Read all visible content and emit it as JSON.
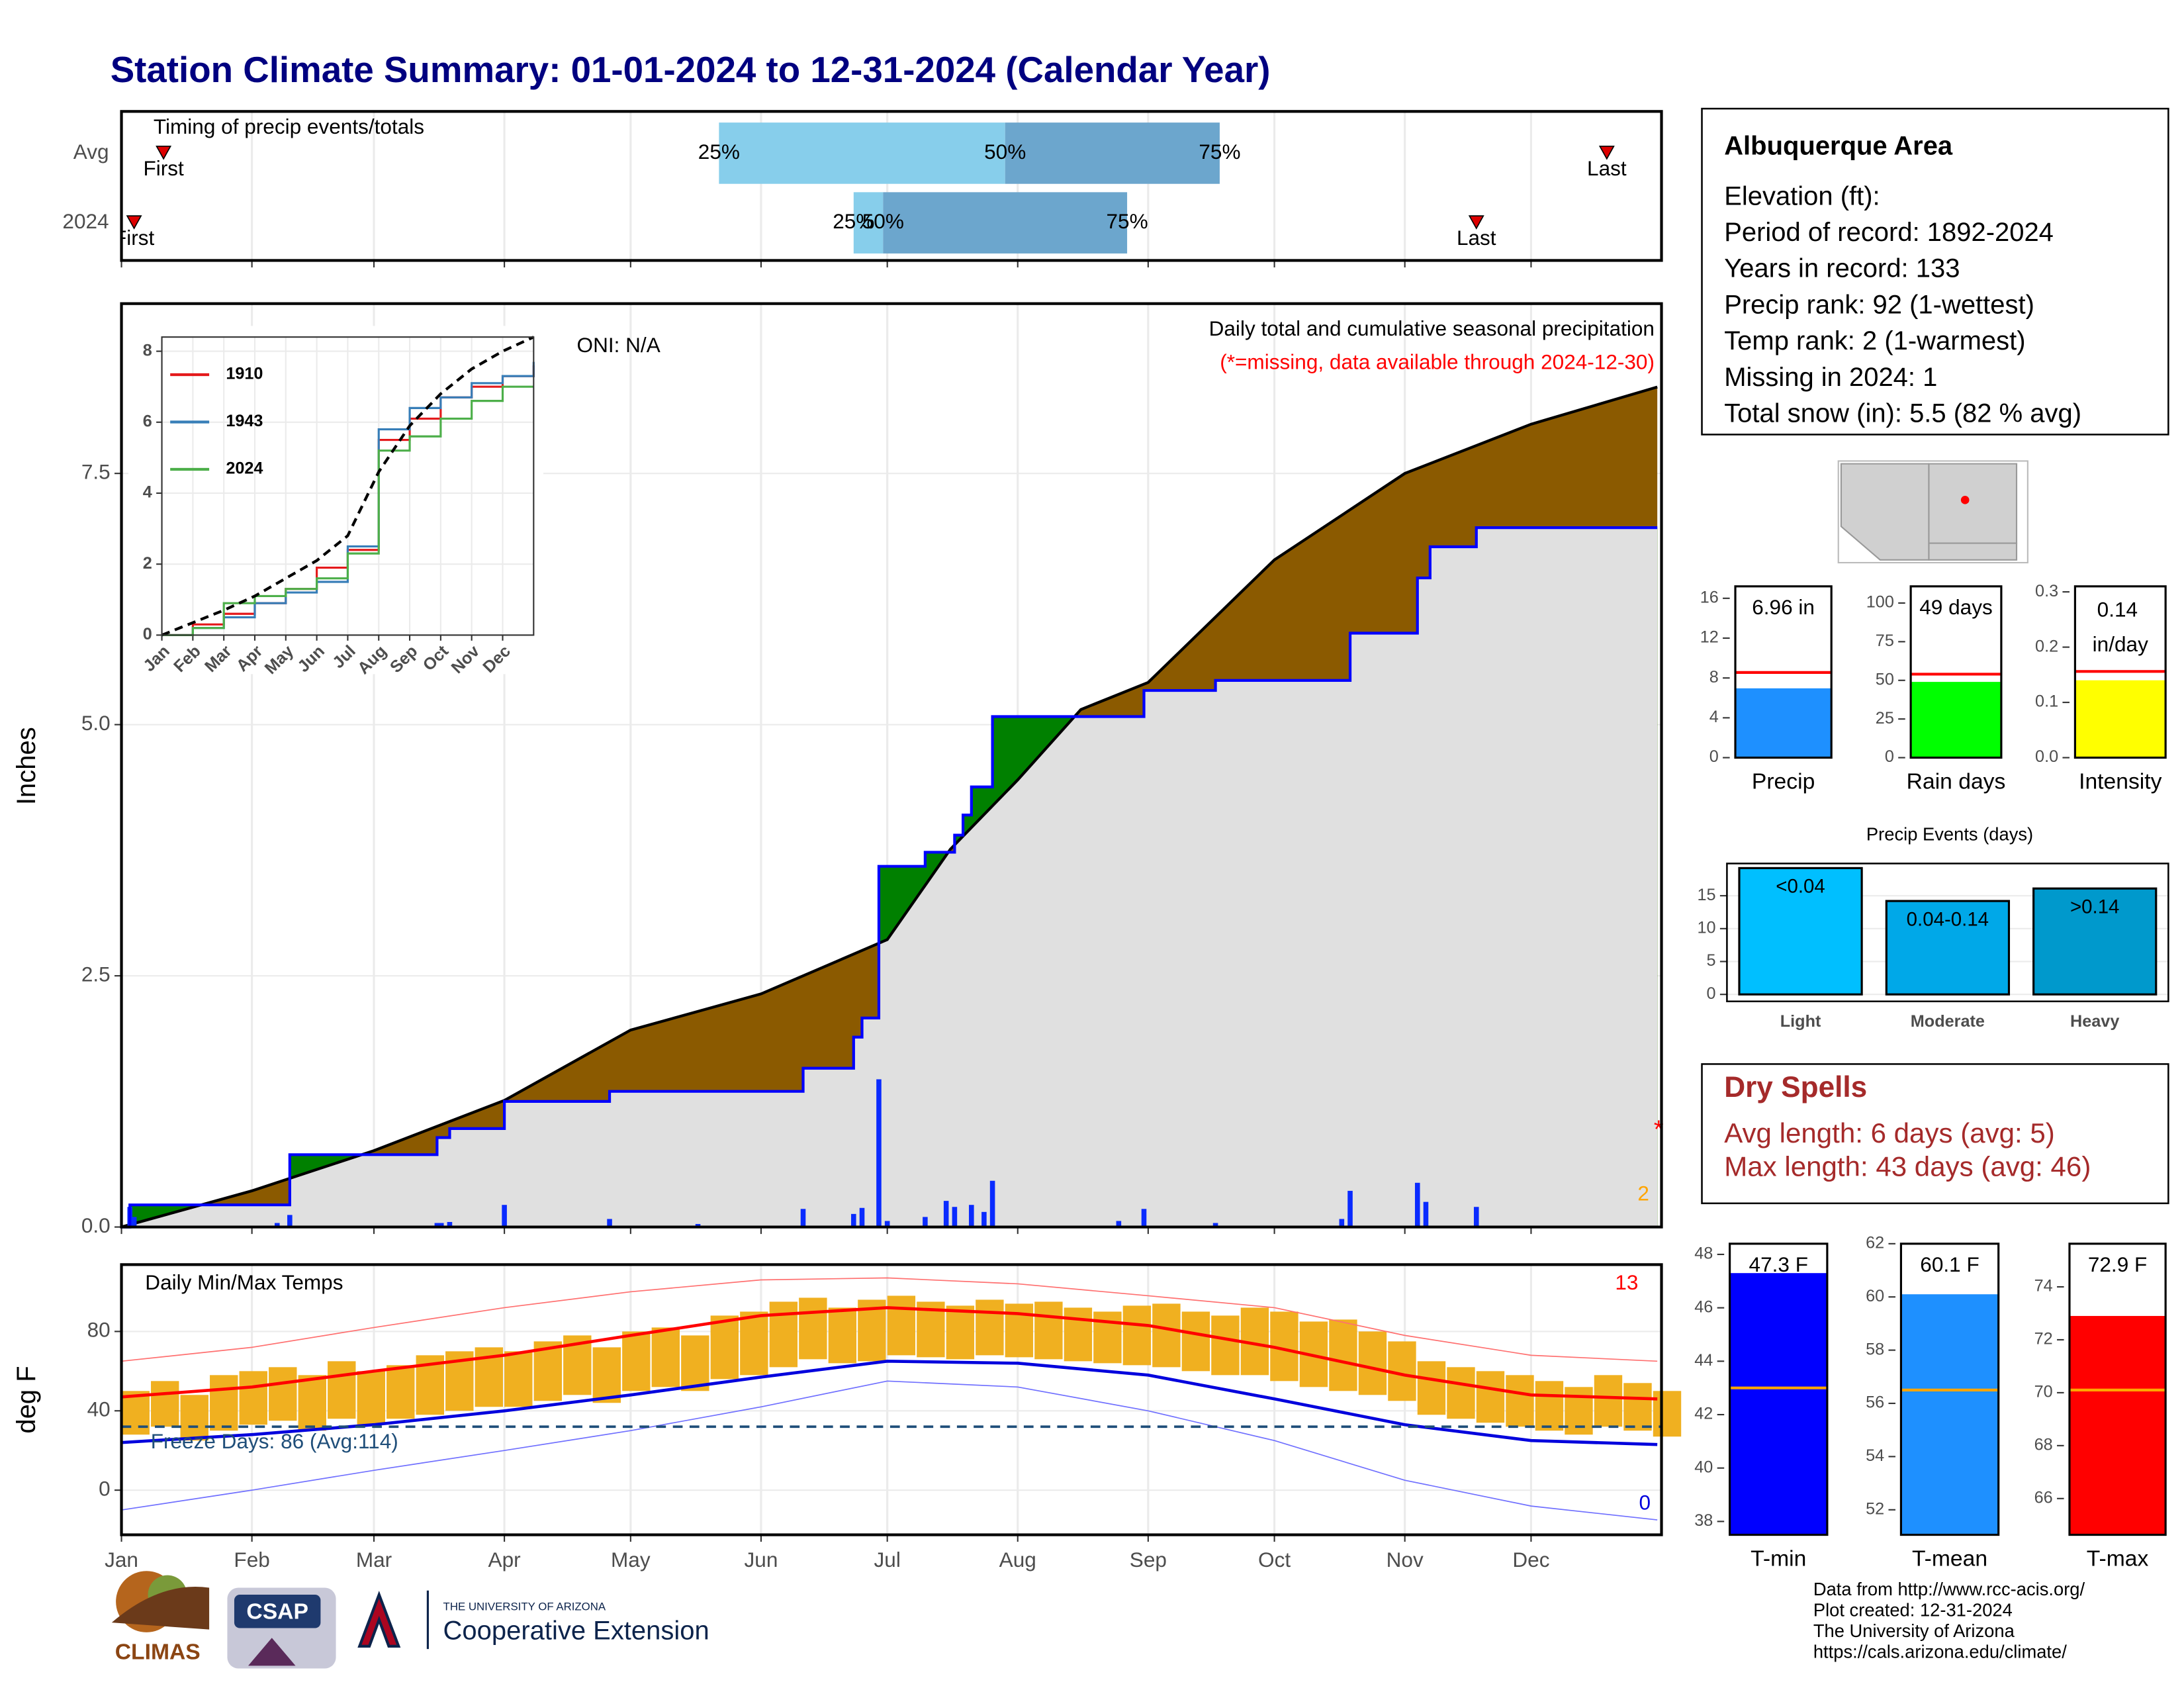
{
  "page_title": "Station Climate Summary: 01-01-2024 to 12-31-2024 (Calendar Year)",
  "info": {
    "title": "Albuquerque Area",
    "lines": [
      "Elevation (ft):",
      "Period of record: 1892-2024",
      "Years in record: 133",
      "Precip rank: 92 (1-wettest)",
      "Temp rank: 2 (1-warmest)",
      "Missing in 2024: 1",
      "Total snow (in): 5.5 (82 % avg)"
    ]
  },
  "dry_spells": {
    "title": "Dry Spells",
    "lines": [
      "Avg length: 6 days (avg: 5)",
      "Max length: 43 days (avg: 46)"
    ]
  },
  "footer": [
    "Data from http://www.rcc-acis.org/",
    "Plot created: 12-31-2024",
    "The University of Arizona",
    "https://cals.arizona.edu/climate/"
  ],
  "logos": {
    "climas": "CLIMAS",
    "csap": "CSAP",
    "ua": "THE UNIVERSITY OF ARIZONA",
    "extension": "Cooperative Extension"
  },
  "chart_data": [
    {
      "type": "timing",
      "title": "Timing of precip events/totals",
      "categories": [
        "Avg",
        "2024"
      ],
      "first": [
        10,
        3
      ],
      "last": [
        353,
        322
      ],
      "q25": [
        142,
        174
      ],
      "q50": [
        210,
        181
      ],
      "q75": [
        261,
        239
      ],
      "first_label": "First",
      "last_label": "Last",
      "q25_label": "25%",
      "q50_label": "50%",
      "q75_label": "75%",
      "colors": [
        "#87ceeb",
        "#6ca6cd"
      ]
    },
    {
      "type": "precip",
      "title": "Daily total and cumulative seasonal precipitation",
      "subtitle": "(*=missing, data available through 2024-12-30)",
      "annotation": "ONI: N/A",
      "ylabel": "Inches",
      "missing_marker": "*",
      "orange_count": 2,
      "ylim": [
        0,
        9.19
      ],
      "yticks": [
        {
          "value": 0,
          "label": "0.0"
        },
        2.5,
        {
          "value": 5,
          "label": "5.0"
        },
        7.5
      ],
      "avg": {
        "x": [
          0,
          31,
          60,
          91,
          121,
          152,
          182,
          197,
          213,
          228,
          244,
          274,
          305,
          335,
          365
        ],
        "values": [
          0,
          0.36,
          0.76,
          1.26,
          1.96,
          2.32,
          2.86,
          3.76,
          4.45,
          5.15,
          5.42,
          6.64,
          7.5,
          7.99,
          8.36
        ],
        "color": "#8b5a00"
      },
      "current": {
        "x": [
          0,
          2,
          40,
          75,
          78,
          91,
          116,
          162,
          174,
          176,
          180,
          191,
          198,
          200,
          202,
          207,
          243,
          260,
          292,
          308,
          311,
          322,
          365
        ],
        "values": [
          0,
          0.22,
          0.72,
          0.89,
          0.98,
          1.25,
          1.35,
          1.58,
          1.89,
          2.08,
          3.59,
          3.73,
          3.9,
          4.1,
          4.38,
          5.08,
          5.34,
          5.44,
          5.91,
          6.46,
          6.77,
          6.96,
          6.96
        ],
        "color": "#0000ff"
      },
      "daily": {
        "x": [
          2,
          3,
          37,
          40,
          75,
          76,
          78,
          91,
          116,
          137,
          162,
          174,
          176,
          180,
          182,
          191,
          196,
          198,
          202,
          205,
          207,
          237,
          243,
          260,
          290,
          292,
          308,
          310,
          322
        ],
        "values": [
          0.2,
          0.1,
          0.04,
          0.12,
          0.04,
          0.04,
          0.05,
          0.22,
          0.08,
          0.03,
          0.18,
          0.13,
          0.19,
          1.47,
          0.06,
          0.1,
          0.26,
          0.2,
          0.22,
          0.15,
          0.46,
          0.06,
          0.18,
          0.04,
          0.08,
          0.36,
          0.44,
          0.25,
          0.2
        ],
        "color": "#0a2bff"
      },
      "above_color": "#008000",
      "overlap_color": "#e0e0e0"
    },
    {
      "type": "line",
      "xlim": [
        0,
        12
      ],
      "xticks": [
        {
          "value": 0,
          "label": "Jan"
        },
        {
          "value": 1,
          "label": "Feb"
        },
        {
          "value": 2,
          "label": "Mar"
        },
        {
          "value": 3,
          "label": "Apr"
        },
        {
          "value": 4,
          "label": "May"
        },
        {
          "value": 5,
          "label": "Jun"
        },
        {
          "value": 6,
          "label": "Jul"
        },
        {
          "value": 7,
          "label": "Aug"
        },
        {
          "value": 8,
          "label": "Sep"
        },
        {
          "value": 9,
          "label": "Oct"
        },
        {
          "value": 10,
          "label": "Nov"
        },
        {
          "value": 11,
          "label": "Dec"
        }
      ],
      "ylim": [
        0,
        8.4
      ],
      "yticks": [
        0,
        2,
        4,
        6,
        8
      ],
      "x": [
        0,
        1,
        2,
        3,
        4,
        5,
        6,
        7,
        8,
        9,
        10,
        11,
        12
      ],
      "series": [
        {
          "name": "1910",
          "color": "#e41a1c",
          "step": true,
          "values": [
            0,
            0.3,
            0.6,
            0.9,
            1.3,
            1.9,
            2.4,
            5.5,
            6.1,
            6.7,
            7.0,
            7.3,
            7.6
          ]
        },
        {
          "name": "1943",
          "color": "#377eb8",
          "step": true,
          "values": [
            0,
            0.2,
            0.5,
            0.9,
            1.2,
            1.5,
            2.5,
            5.8,
            6.4,
            6.7,
            7.1,
            7.3,
            7.7
          ]
        },
        {
          "name": "2024",
          "color": "#4daf4a",
          "step": true,
          "values": [
            0,
            0.2,
            0.9,
            1.1,
            1.3,
            1.6,
            2.3,
            5.2,
            5.6,
            6.1,
            6.6,
            7.0,
            7.0
          ]
        },
        {
          "color": "#000000",
          "dashed": true,
          "values": [
            0,
            0.35,
            0.7,
            1.1,
            1.6,
            2.1,
            2.8,
            4.6,
            5.9,
            6.8,
            7.5,
            8.0,
            8.4
          ]
        }
      ]
    },
    {
      "type": "temps",
      "title": "Daily Min/Max Temps",
      "ylabel": "deg F",
      "record_high_count": 13,
      "record_low_count": 0,
      "freeze_label": "Freeze Days: 86 (Avg:114)",
      "freeze_line": 32,
      "ylim": [
        -22.5,
        113.7
      ],
      "yticks": [
        0,
        40,
        80
      ],
      "xlim": [
        0,
        366
      ],
      "xticks": [
        {
          "value": 0,
          "label": "Jan"
        },
        {
          "value": 31,
          "label": "Feb"
        },
        {
          "value": 60,
          "label": "Mar"
        },
        {
          "value": 91,
          "label": "Apr"
        },
        {
          "value": 121,
          "label": "May"
        },
        {
          "value": 152,
          "label": "Jun"
        },
        {
          "value": 182,
          "label": "Jul"
        },
        {
          "value": 213,
          "label": "Aug"
        },
        {
          "value": 244,
          "label": "Sep"
        },
        {
          "value": 274,
          "label": "Oct"
        },
        {
          "value": 305,
          "label": "Nov"
        },
        {
          "value": 335,
          "label": "Dec"
        }
      ],
      "weeks": {
        "x": [
          0,
          7,
          14,
          21,
          28,
          35,
          42,
          49,
          56,
          63,
          70,
          77,
          84,
          91,
          98,
          105,
          112,
          119,
          126,
          133,
          140,
          147,
          154,
          161,
          168,
          175,
          182,
          189,
          196,
          203,
          210,
          217,
          224,
          231,
          238,
          245,
          252,
          259,
          266,
          273,
          280,
          287,
          294,
          301,
          308,
          315,
          322,
          329,
          336,
          343,
          350,
          357,
          364
        ],
        "max": [
          50,
          55,
          48,
          58,
          60,
          62,
          58,
          65,
          60,
          63,
          68,
          70,
          72,
          70,
          75,
          78,
          72,
          80,
          82,
          78,
          88,
          90,
          95,
          97,
          92,
          96,
          98,
          95,
          93,
          96,
          94,
          95,
          92,
          90,
          93,
          94,
          90,
          88,
          92,
          90,
          85,
          86,
          80,
          75,
          65,
          62,
          60,
          58,
          55,
          52,
          58,
          54,
          50
        ],
        "min": [
          28,
          32,
          25,
          30,
          33,
          35,
          30,
          36,
          33,
          36,
          38,
          40,
          42,
          42,
          45,
          48,
          44,
          50,
          52,
          50,
          56,
          58,
          62,
          66,
          64,
          65,
          68,
          67,
          66,
          68,
          67,
          66,
          65,
          64,
          63,
          62,
          60,
          58,
          58,
          55,
          52,
          50,
          48,
          45,
          38,
          36,
          34,
          32,
          30,
          28,
          32,
          30,
          27
        ],
        "color": "#f0b020"
      },
      "normals": {
        "x": [
          0,
          31,
          60,
          91,
          121,
          152,
          182,
          213,
          244,
          274,
          305,
          335,
          365
        ],
        "avg_max": [
          47,
          52,
          60,
          68,
          78,
          88,
          92,
          89,
          83,
          72,
          58,
          48,
          46
        ],
        "avg_min": [
          24,
          28,
          33,
          40,
          48,
          57,
          65,
          64,
          58,
          46,
          33,
          25,
          23
        ],
        "record_max": [
          65,
          72,
          82,
          92,
          100,
          106,
          107,
          104,
          98,
          92,
          78,
          68,
          65
        ],
        "record_min": [
          -10,
          0,
          10,
          20,
          30,
          42,
          55,
          52,
          40,
          25,
          5,
          -8,
          -15
        ]
      }
    },
    {
      "type": "gauge",
      "label": "Precip",
      "values": [
        6.96
      ],
      "value_labels": [
        "6.96 in"
      ],
      "average": 8.55,
      "ylim": [
        0,
        17.2
      ],
      "yticks": [
        0,
        4,
        8,
        12,
        16
      ],
      "color": "#1e90ff",
      "avg_color": "#ff0000"
    },
    {
      "type": "gauge",
      "label": "Rain days",
      "values": [
        49
      ],
      "value_labels": [
        "49 days"
      ],
      "average": 54,
      "ylim": [
        0,
        110.8
      ],
      "yticks": [
        0,
        25,
        50,
        75,
        100
      ],
      "color": "#00ff00",
      "avg_color": "#ff0000"
    },
    {
      "type": "gauge",
      "label": "Intensity",
      "values": [
        0.14
      ],
      "value_labels": [
        "0.14 in/day"
      ],
      "wrap_label": true,
      "average": 0.156,
      "ylim": [
        0,
        0.31
      ],
      "yticks": [
        {
          "value": 0,
          "label": "0.0"
        },
        0.1,
        0.2,
        0.3
      ],
      "color": "#ffff00",
      "avg_color": "#ff0000"
    },
    {
      "type": "bar",
      "title": "Precip Events (days)",
      "categories": [
        "Light",
        "Moderate",
        "Heavy"
      ],
      "values": [
        19.2,
        14.2,
        16.1
      ],
      "range_labels": [
        "<0.04",
        "0.04-0.14",
        ">0.14"
      ],
      "colors": [
        "#00bfff",
        "#00a8e8",
        "#0099cc"
      ],
      "ylim": [
        -1.06,
        19.9
      ],
      "yticks": [
        0,
        5,
        10,
        15
      ]
    },
    {
      "type": "gauge",
      "label": "T-min",
      "values": [
        47.3
      ],
      "value_labels": [
        "47.3 F"
      ],
      "average": 43,
      "ylim": [
        37.5,
        48.4
      ],
      "yticks": [
        38,
        40,
        42,
        44,
        46,
        48
      ],
      "color": "#0000ff",
      "avg_color": "#ffa500"
    },
    {
      "type": "gauge",
      "label": "T-mean",
      "values": [
        60.1
      ],
      "value_labels": [
        "60.1 F"
      ],
      "average": 56.5,
      "ylim": [
        51.06,
        62.0
      ],
      "yticks": [
        52,
        54,
        56,
        58,
        60,
        62
      ],
      "color": "#1e90ff",
      "avg_color": "#ffa500"
    },
    {
      "type": "gauge",
      "label": "T-max",
      "values": [
        72.9
      ],
      "value_labels": [
        "72.9 F"
      ],
      "average": 70.1,
      "ylim": [
        64.63,
        75.63
      ],
      "yticks": [
        66,
        68,
        70,
        72,
        74
      ],
      "color": "#ff0000",
      "avg_color": "#ffa500"
    }
  ]
}
